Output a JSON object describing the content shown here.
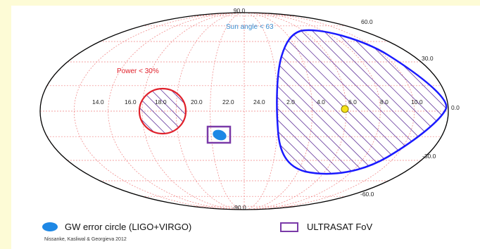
{
  "top_label": "90.0",
  "bottom_label": "-90.0",
  "lat_labels_right": [
    "60.0",
    "30.0",
    "0.0",
    "-30.0",
    "-60.0"
  ],
  "ra_labels": [
    "14.0",
    "16.0",
    "18.0",
    "20.0",
    "22.0",
    "24.0",
    "2.0",
    "4.0",
    "6.0",
    "8.0",
    "10.0"
  ],
  "sun_label": "Sun angle < 63",
  "power_label": "Power < 30%",
  "legend": {
    "gw_label": "GW error circle (LIGO+VIRGO)",
    "fov_label": "ULTRASAT FoV",
    "citation": "Nissanke, Kasliwal & Georgieva 2012"
  },
  "colors": {
    "background": "#fdfbd6",
    "grid": "#f08080",
    "sun_region": "#1a1aff",
    "power_region": "#e0202a",
    "gw_circle": "#1e88e5",
    "fov_box": "#7a3aa8",
    "sun_marker": "#f5e21a",
    "sun_text": "#3b8fd1"
  }
}
